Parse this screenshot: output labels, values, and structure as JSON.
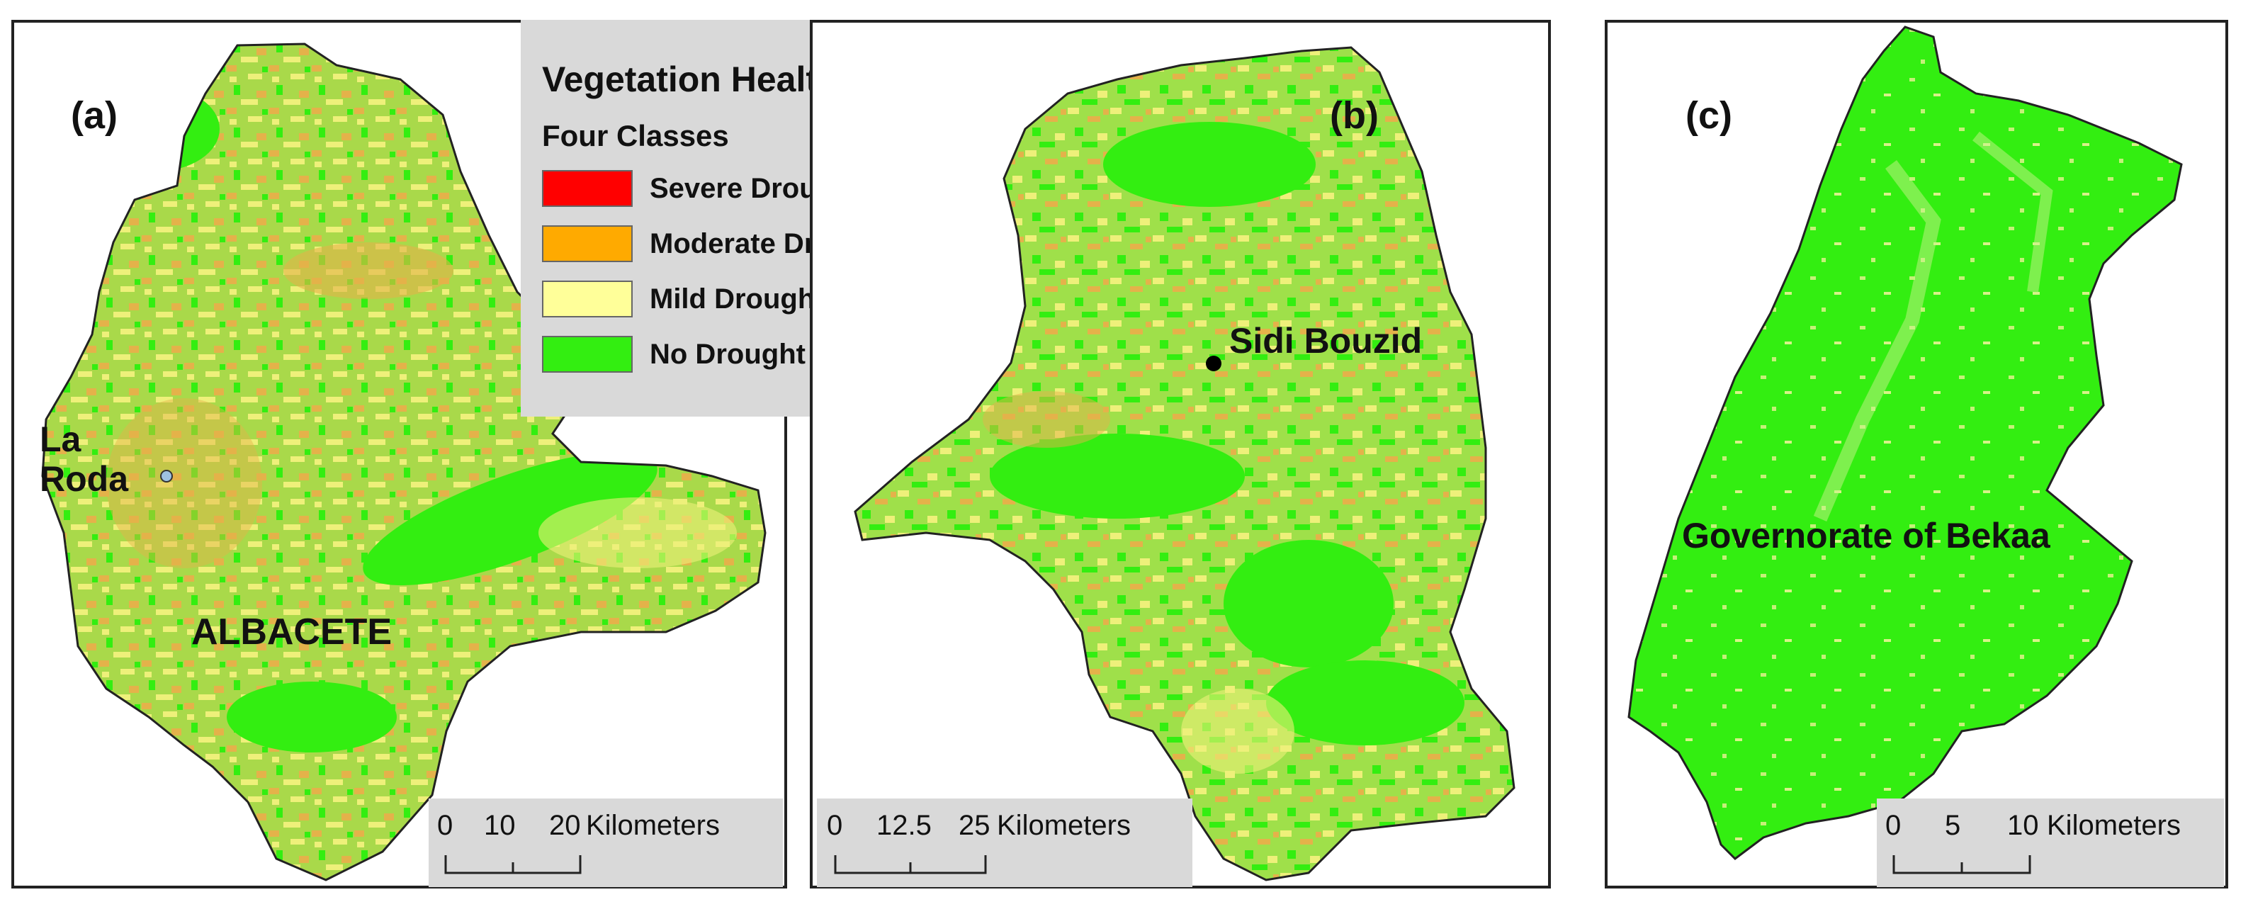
{
  "panels": {
    "a": {
      "label": "(a)",
      "places": {
        "la_roda": "La\nRoda",
        "albacete": "ALBACETE"
      },
      "scale": {
        "ticks": [
          "0",
          "10",
          "20"
        ],
        "units": "Kilometers"
      }
    },
    "b": {
      "label": "(b)",
      "places": {
        "sidi_bouzid": "Sidi Bouzid"
      },
      "scale": {
        "ticks": [
          "0",
          "12.5",
          "25"
        ],
        "units": "Kilometers"
      }
    },
    "c": {
      "label": "(c)",
      "places": {
        "bekaa": "Governorate of Bekaa"
      },
      "scale": {
        "ticks": [
          "0",
          "5",
          "10"
        ],
        "units": "Kilometers"
      }
    }
  },
  "legend": {
    "title": "Vegetation Health Index",
    "subtitle": "Four Classes",
    "classes": [
      {
        "label": "Severe Drought",
        "color": "#ff0000"
      },
      {
        "label": "Moderate Drought",
        "color": "#ffaa00"
      },
      {
        "label": "Mild Drought",
        "color": "#ffff99"
      },
      {
        "label": "No Drought",
        "color": "#33ee11"
      }
    ]
  },
  "colors": {
    "no_drought": "#33ee11",
    "mild": "#eef07a",
    "moderate": "#e3b347",
    "severe": "#ff0000",
    "outline": "#222222"
  }
}
